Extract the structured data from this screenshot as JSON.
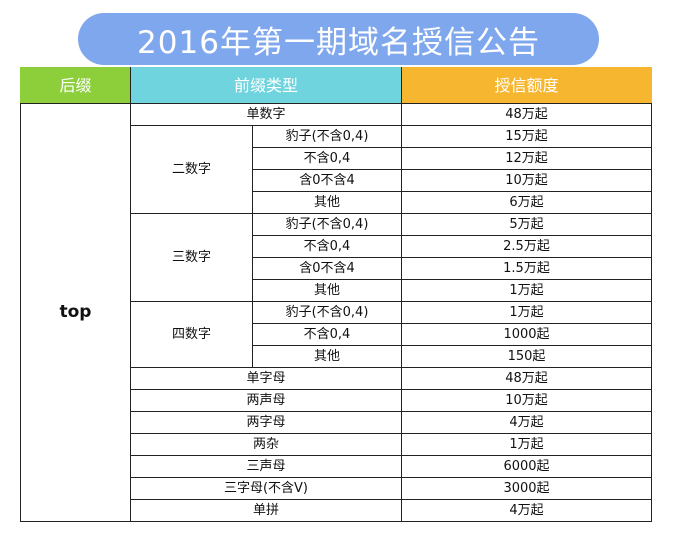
{
  "title": "2016年第一期域名授信公告",
  "headers": [
    "后缀",
    "前缀类型",
    "授信额度"
  ],
  "suffix": "top",
  "rows": {
    "single_digit": {
      "label": "单数字",
      "credit": "48万起"
    },
    "two_digit": {
      "label": "二数字",
      "items": [
        {
          "label": "豹子(不含0,4)",
          "credit": "15万起"
        },
        {
          "label": "不含0,4",
          "credit": "12万起"
        },
        {
          "label": "含0不含4",
          "credit": "10万起"
        },
        {
          "label": "其他",
          "credit": "6万起"
        }
      ]
    },
    "three_digit": {
      "label": "三数字",
      "items": [
        {
          "label": "豹子(不含0,4)",
          "credit": "5万起"
        },
        {
          "label": "不含0,4",
          "credit": "2.5万起"
        },
        {
          "label": "含0不含4",
          "credit": "1.5万起"
        },
        {
          "label": "其他",
          "credit": "1万起"
        }
      ]
    },
    "four_digit": {
      "label": "四数字",
      "items": [
        {
          "label": "豹子(不含0,4)",
          "credit": "1万起"
        },
        {
          "label": "不含0,4",
          "credit": "1000起"
        },
        {
          "label": "其他",
          "credit": "150起"
        }
      ]
    },
    "others": [
      {
        "label": "单字母",
        "credit": "48万起"
      },
      {
        "label": "两声母",
        "credit": "10万起"
      },
      {
        "label": "两字母",
        "credit": "4万起"
      },
      {
        "label": "两杂",
        "credit": "1万起"
      },
      {
        "label": "三声母",
        "credit": "6000起"
      },
      {
        "label": "三字母(不含V)",
        "credit": "3000起"
      },
      {
        "label": "单拼",
        "credit": "4万起"
      }
    ]
  }
}
